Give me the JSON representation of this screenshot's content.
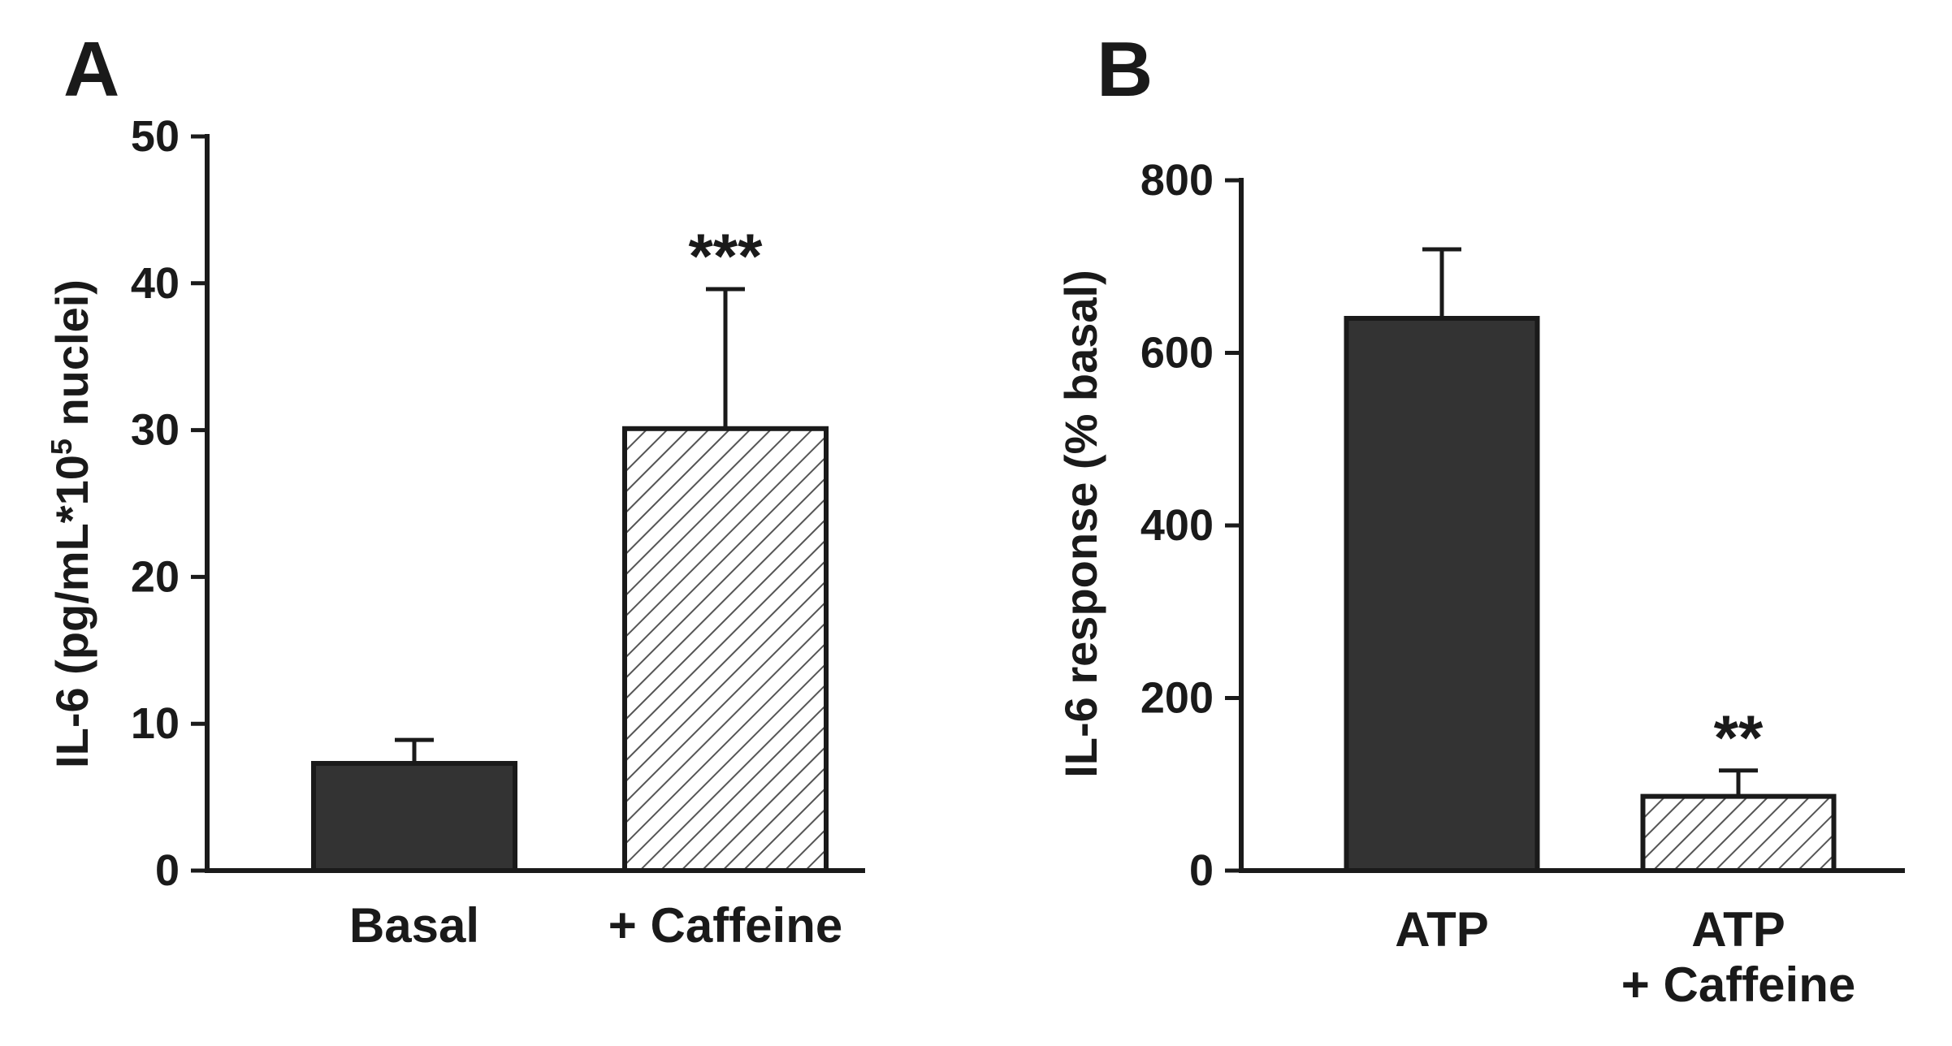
{
  "chart_data": [
    {
      "type": "bar",
      "panel_label": "A",
      "categories": [
        "Basal",
        "+ Caffeine"
      ],
      "category_lines": [
        [
          "Basal"
        ],
        [
          "+ Caffeine"
        ]
      ],
      "values": [
        7.3,
        30.1
      ],
      "errors": [
        1.6,
        9.5
      ],
      "bar_fill": [
        "solid",
        "hatched"
      ],
      "significance": [
        "",
        "***"
      ],
      "ylabel_parts": [
        "IL-6 (pg/mL*10",
        "5",
        " nuclei)"
      ],
      "ylim": [
        0,
        50
      ],
      "yticks": [
        0,
        10,
        20,
        30,
        40,
        50
      ],
      "colors": {
        "solid": "#333333",
        "hatch": "#555555",
        "axis": "#1a1a1a"
      }
    },
    {
      "type": "bar",
      "panel_label": "B",
      "categories": [
        "ATP",
        "ATP + Caffeine"
      ],
      "category_lines": [
        [
          "ATP"
        ],
        [
          "ATP",
          "+ Caffeine"
        ]
      ],
      "values": [
        640,
        86
      ],
      "errors": [
        80,
        30
      ],
      "bar_fill": [
        "solid",
        "hatched"
      ],
      "significance": [
        "",
        "**"
      ],
      "ylabel_parts": [
        "IL-6 response (% basal)"
      ],
      "ylim": [
        0,
        800
      ],
      "yticks": [
        0,
        200,
        400,
        600,
        800
      ],
      "colors": {
        "solid": "#333333",
        "hatch": "#555555",
        "axis": "#1a1a1a"
      }
    }
  ]
}
